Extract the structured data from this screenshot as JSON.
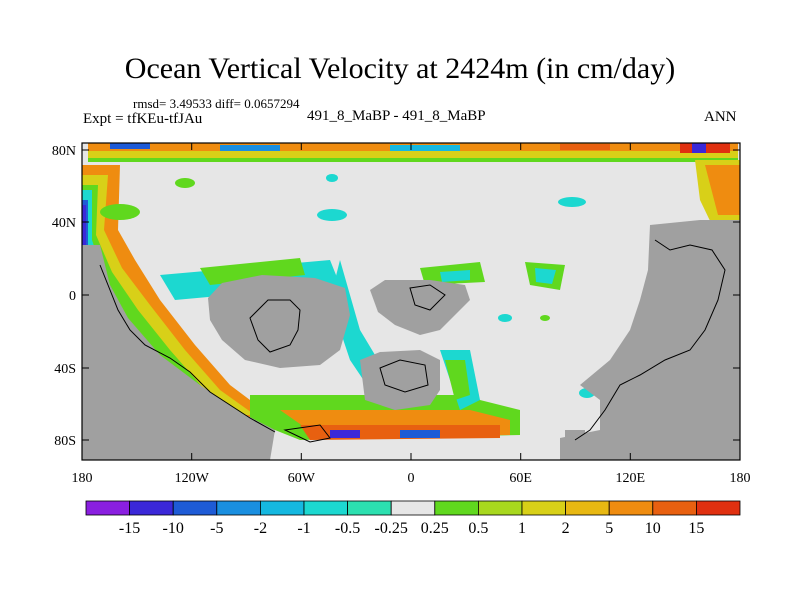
{
  "title": "Ocean Vertical Velocity at 2424m (in cm/day)",
  "stats": "rmsd= 3.49533 diff= 0.0657294",
  "left_label": "Expt = tfKEu-tfJAu",
  "center_label": "491_8_MaBP - 491_8_MaBP",
  "right_label": "ANN",
  "lat_ticks": [
    "80N",
    "40N",
    "0",
    "40S",
    "80S"
  ],
  "lon_ticks": [
    "180",
    "120W",
    "60W",
    "0",
    "60E",
    "120E",
    "180"
  ],
  "colorbar": {
    "labels": [
      "-15",
      "-10",
      "-5",
      "-2",
      "-1",
      "-0.5",
      "-0.25",
      "0.25",
      "0.5",
      "1",
      "2",
      "5",
      "10",
      "15"
    ],
    "colors": [
      "#8a1fe0",
      "#3b28d8",
      "#1e5bd6",
      "#1a8fe0",
      "#15b8e0",
      "#1cd8d0",
      "#2ce0b0",
      "#e6e6e6",
      "#60d81e",
      "#a8d81e",
      "#d8d018",
      "#e8b812",
      "#ef8c10",
      "#e86010",
      "#e03010"
    ]
  },
  "colors": {
    "land": "#a0a0a0",
    "near_zero": "#e6e6e6"
  }
}
